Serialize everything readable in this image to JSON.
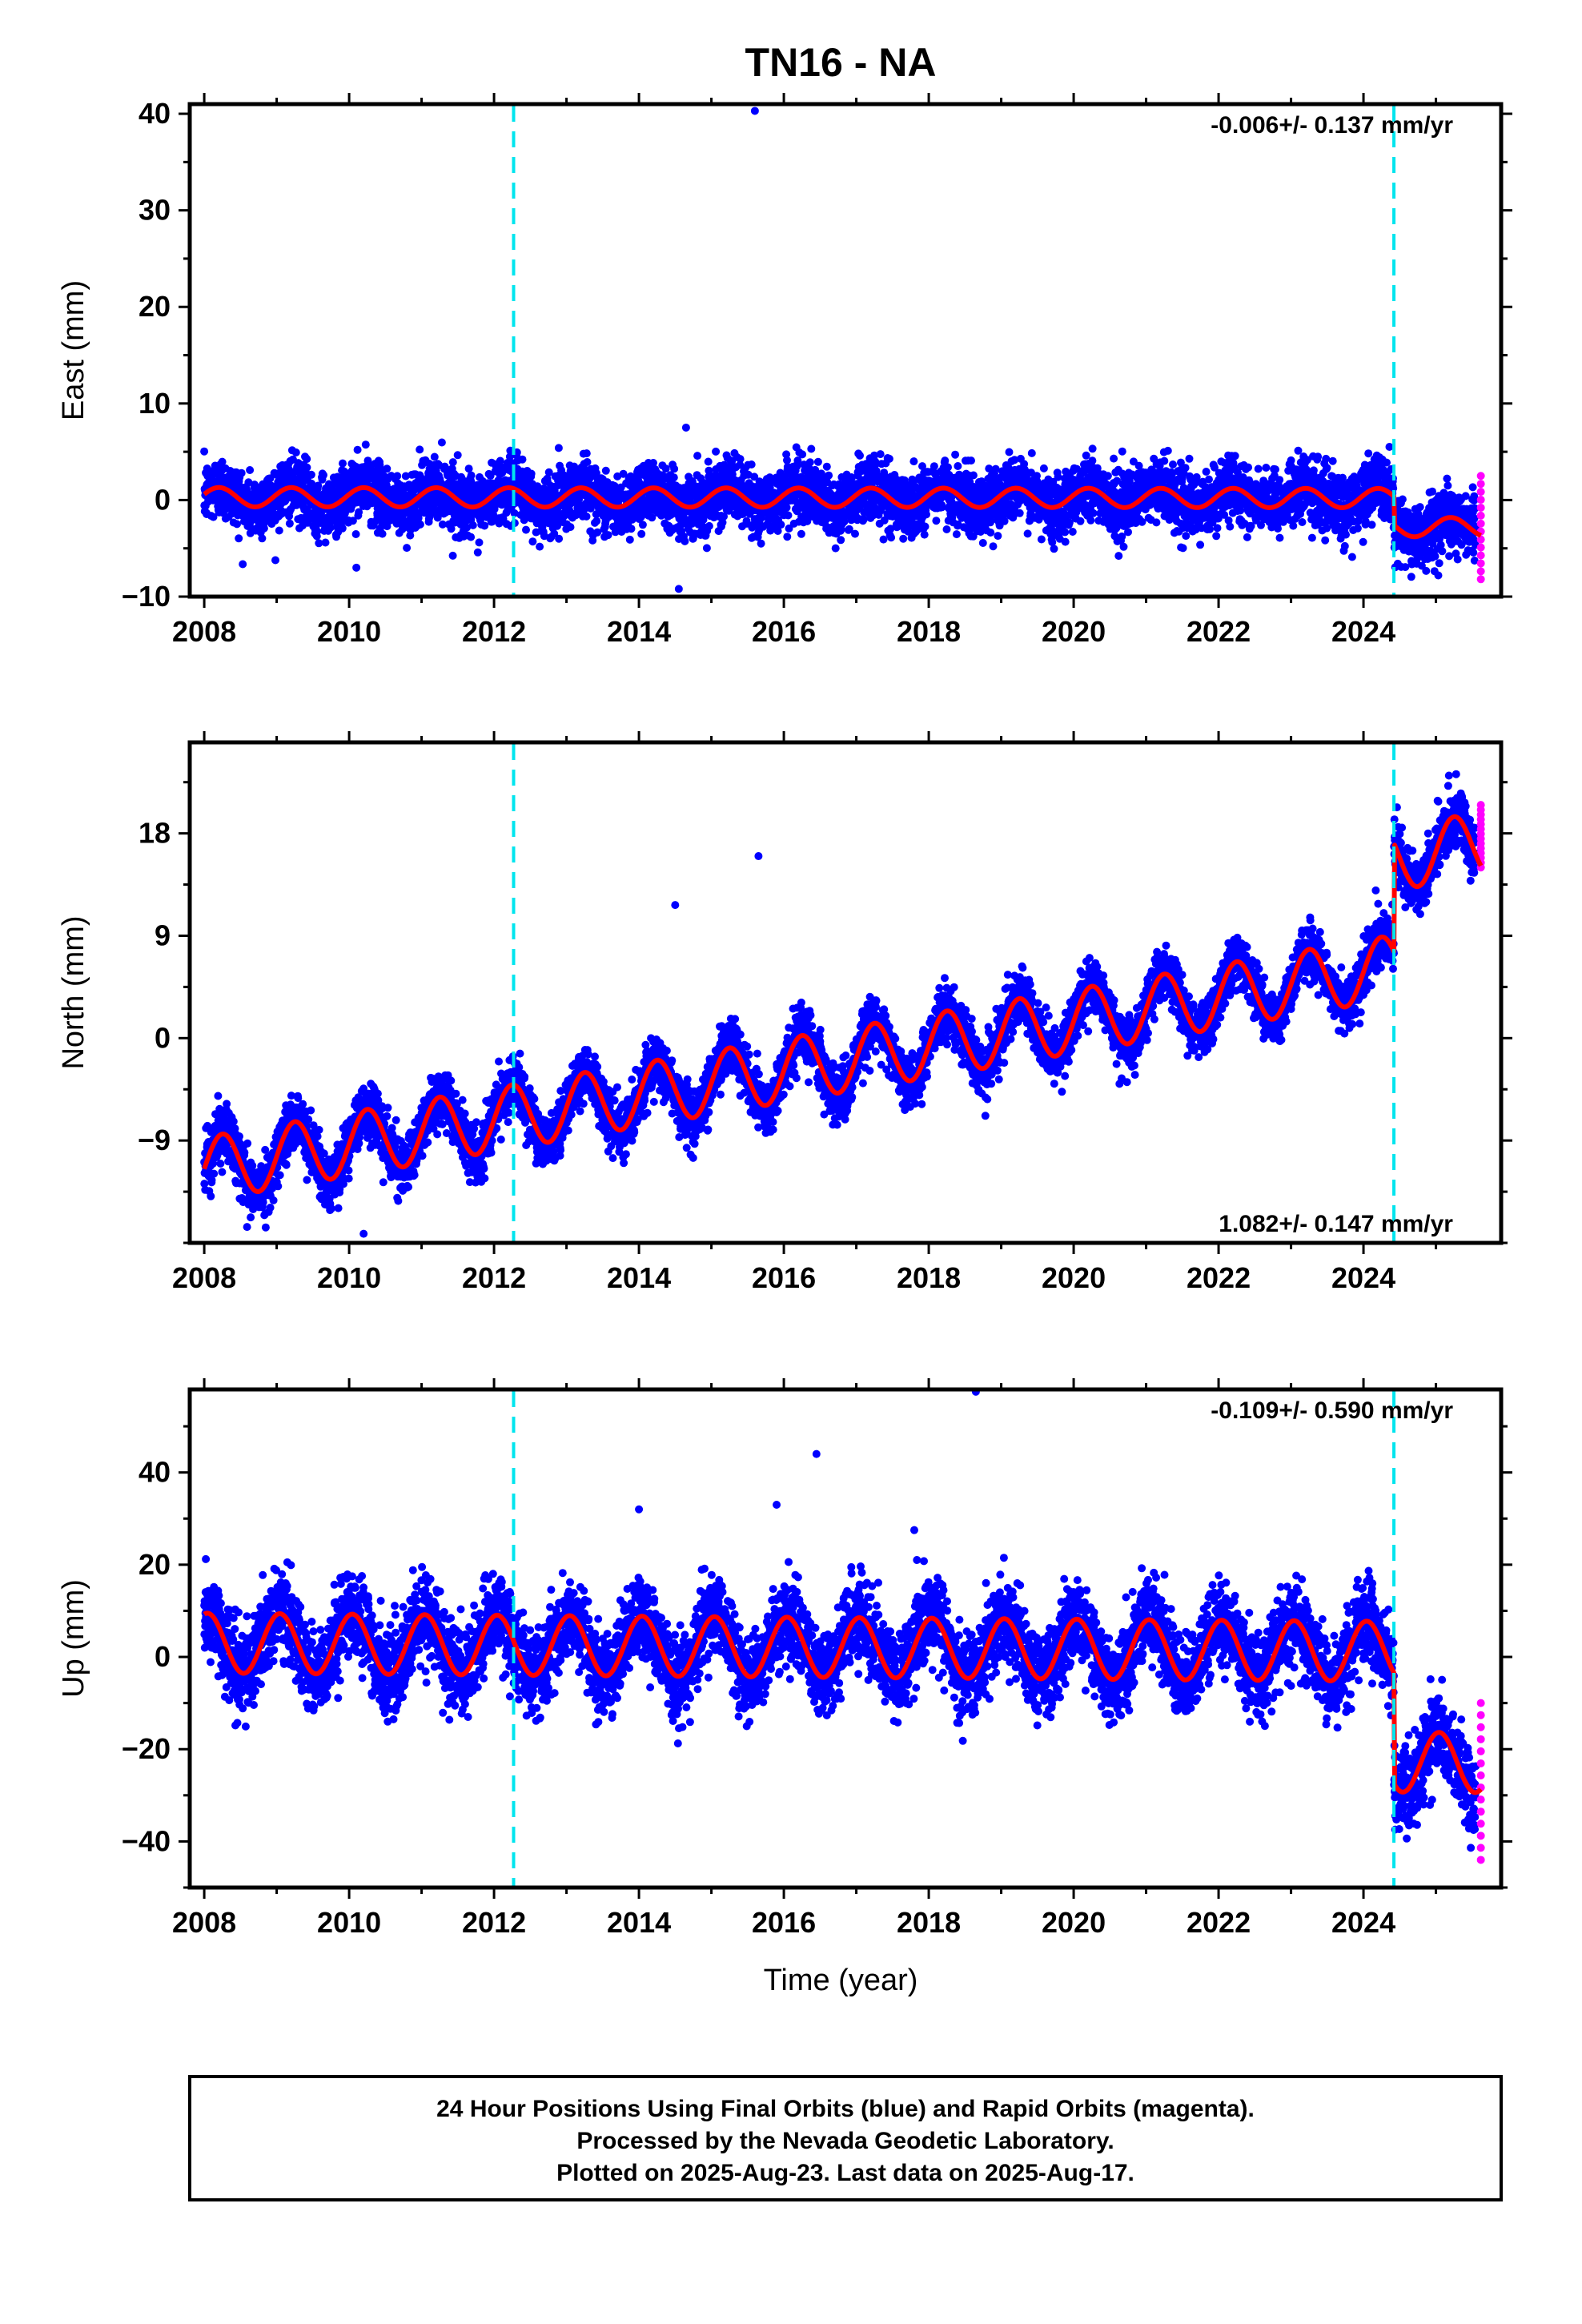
{
  "title": "TN16 - NA",
  "colors": {
    "final_orbits": "#0000ff",
    "rapid_orbits": "#ff00ff",
    "model": "#ff0000",
    "breaks": "#00e5ee"
  },
  "xaxis": {
    "label": "Time (year)",
    "range": [
      2007.8,
      2025.9
    ],
    "ticks": [
      2008,
      2010,
      2012,
      2014,
      2016,
      2018,
      2020,
      2022,
      2024
    ]
  },
  "break_years": [
    2012.27,
    2024.42
  ],
  "footer": {
    "line1": "24 Hour Positions Using Final Orbits (blue) and Rapid Orbits (magenta).",
    "line2": "Processed by the Nevada Geodetic Laboratory.",
    "line3": "Plotted on 2025-Aug-23. Last data on 2025-Aug-17."
  },
  "chart_data": [
    {
      "type": "scatter",
      "component": "east",
      "ylabel": "East (mm)",
      "ylim": [
        -10,
        41
      ],
      "yticks": [
        -10,
        0,
        10,
        20,
        30,
        40
      ],
      "rate": "-0.006+/- 0.137 mm/yr",
      "rate_position": "top-right",
      "trend": -0.006,
      "offset_at_start": 0.3,
      "seasonal_amplitude": 1.0,
      "seasonal_phase": 0.3,
      "scatter_sigma": 1.6,
      "steps": [
        {
          "year": 2024.42,
          "jump": -3.0
        }
      ],
      "outliers": [
        [
          2015.6,
          40.3
        ],
        [
          2014.55,
          -9.2
        ],
        [
          2010.1,
          -7.0
        ],
        [
          2014.65,
          7.5
        ]
      ],
      "rapid_range": [
        -8.2,
        2.5
      ]
    },
    {
      "type": "scatter",
      "component": "north",
      "ylabel": "North (mm)",
      "ylim": [
        -18,
        26
      ],
      "yticks": [
        -9,
        0,
        9,
        18
      ],
      "rate": "1.082+/- 0.147 mm/yr",
      "rate_position": "bottom-right",
      "trend": 1.082,
      "offset_at_start": -11.5,
      "seasonal_amplitude": 2.8,
      "seasonal_phase": 0.0,
      "scatter_sigma": 1.2,
      "steps": [
        {
          "year": 2024.42,
          "jump": 9.5
        }
      ],
      "outliers": [
        [
          2015.65,
          16.0
        ],
        [
          2014.5,
          11.7
        ],
        [
          2010.2,
          -17.2
        ]
      ],
      "rapid_range": [
        15.0,
        20.5
      ]
    },
    {
      "type": "scatter",
      "component": "up",
      "ylabel": "Up (mm)",
      "ylim": [
        -50,
        58
      ],
      "yticks": [
        -40,
        -20,
        0,
        20,
        40
      ],
      "rate": "-0.109+/- 0.590 mm/yr",
      "rate_position": "top-right",
      "trend": -0.109,
      "offset_at_start": 3.0,
      "seasonal_amplitude": 6.5,
      "seasonal_phase": 1.3,
      "scatter_sigma": 4.5,
      "steps": [
        {
          "year": 2024.42,
          "jump": -24.0
        }
      ],
      "outliers": [
        [
          2018.65,
          57.5
        ],
        [
          2016.45,
          44.0
        ],
        [
          2015.9,
          33.0
        ],
        [
          2014.0,
          32.0
        ],
        [
          2017.8,
          27.5
        ]
      ],
      "rapid_range": [
        -44.0,
        -10.0
      ]
    }
  ]
}
